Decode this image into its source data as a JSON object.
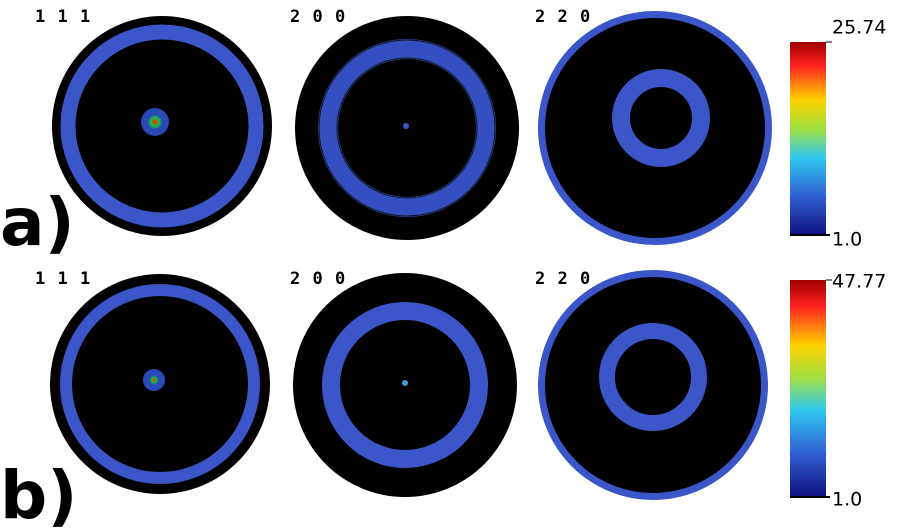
{
  "rows": [
    {
      "label": "a)",
      "figures": [
        "1 1 1",
        "2 0 0",
        "2 2 0"
      ],
      "colorbar": {
        "max": "25.74",
        "min": "1.0"
      }
    },
    {
      "label": "b)",
      "figures": [
        "1 1 1",
        "2 0 0",
        "2 2 0"
      ],
      "colorbar": {
        "max": "47.77",
        "min": "1.0"
      }
    }
  ]
}
